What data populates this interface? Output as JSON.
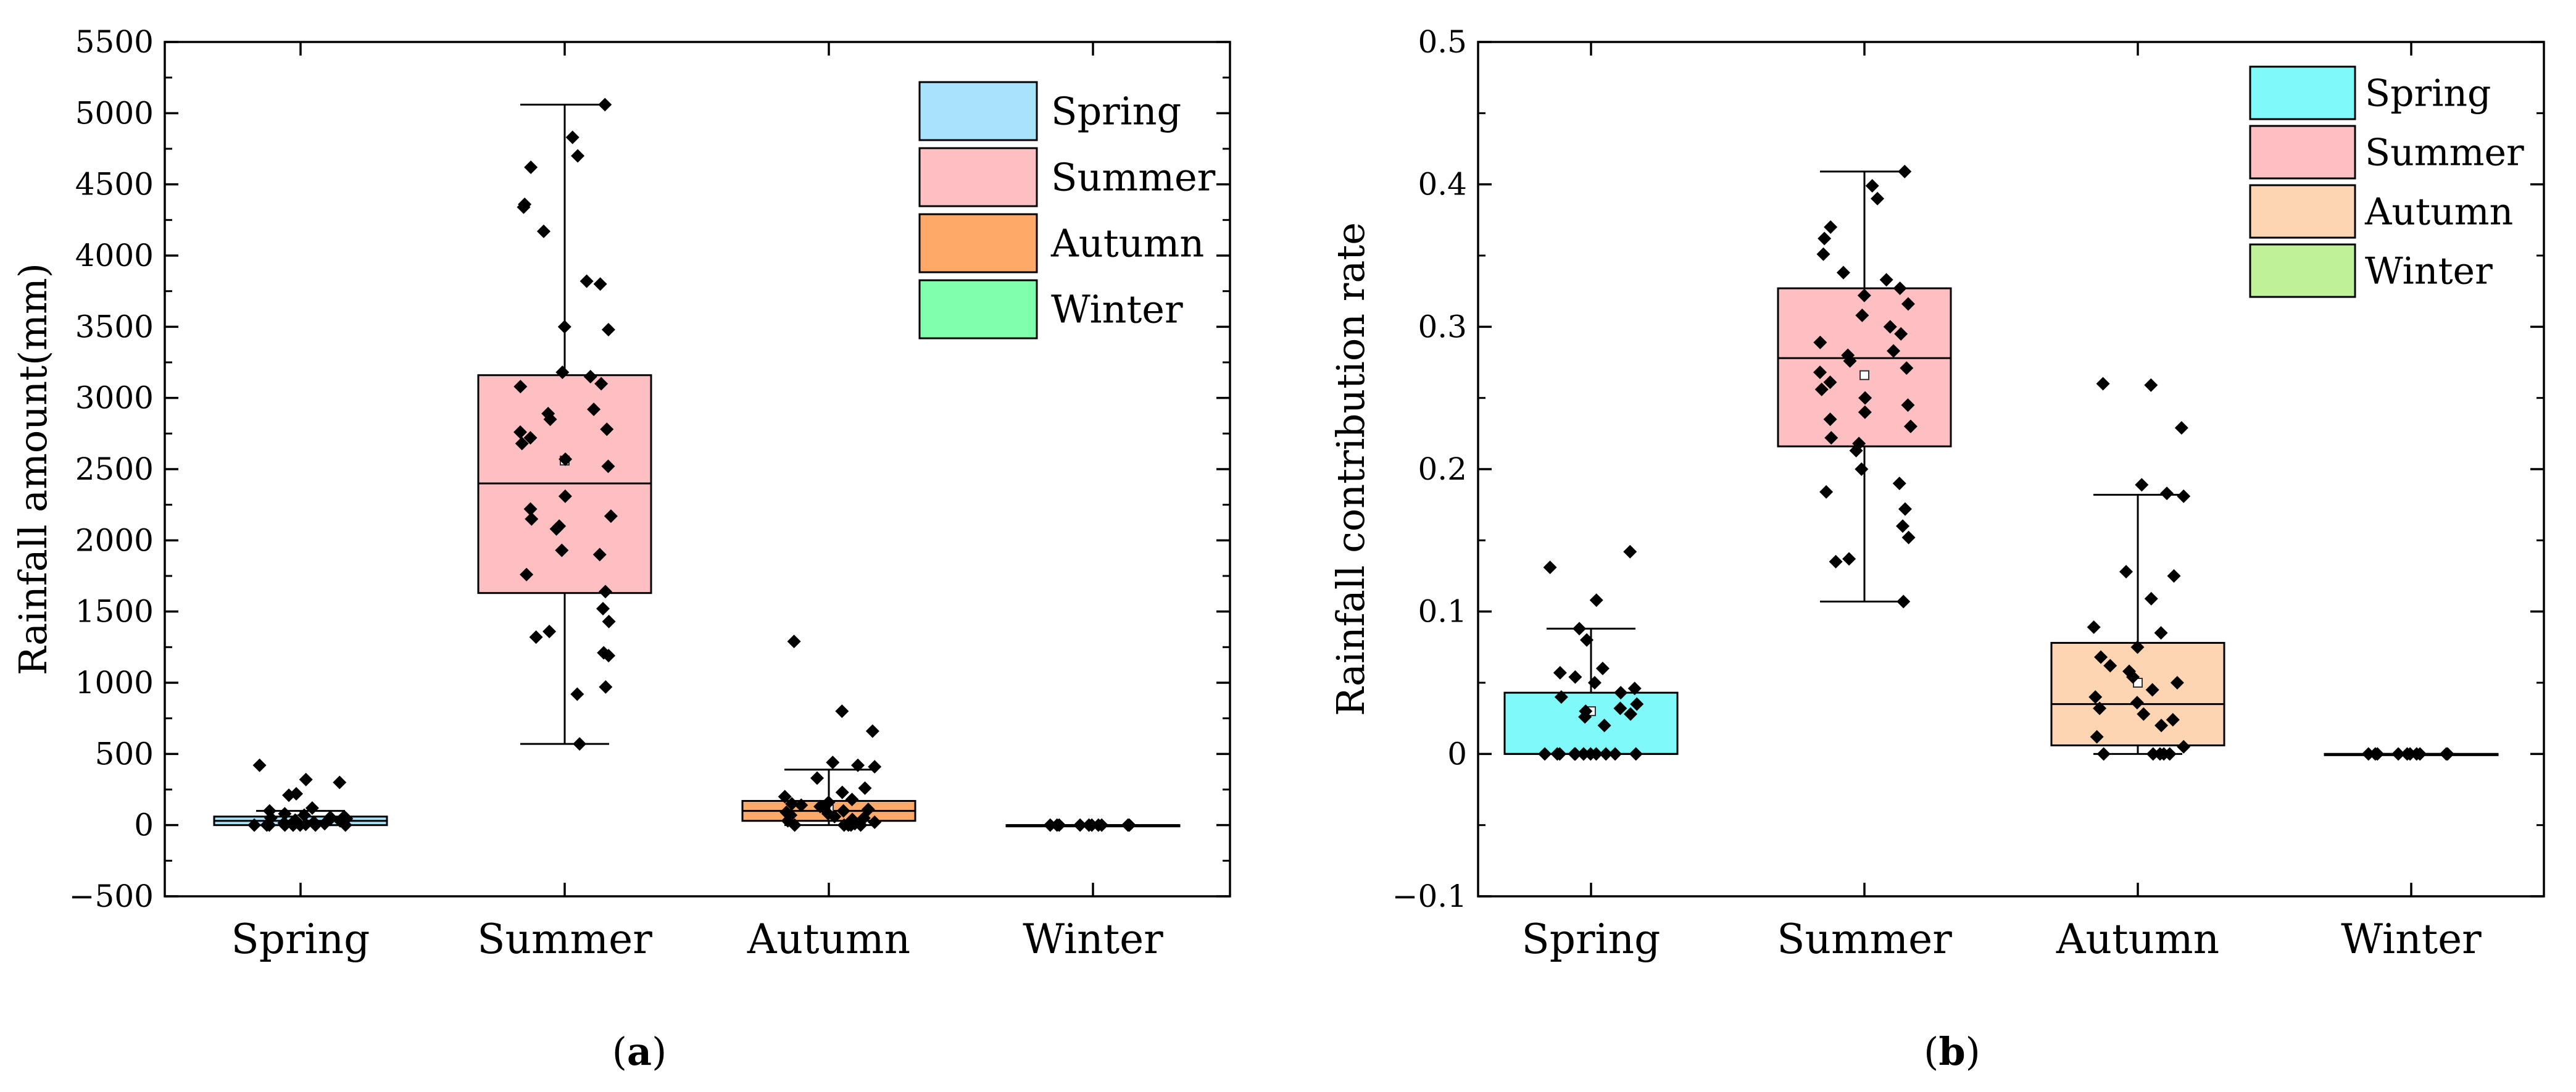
{
  "chart_data": [
    {
      "type": "box",
      "panel_label_open": "(",
      "panel_label": "a",
      "panel_label_close": ")",
      "xlabel": "",
      "ylabel": "Rainfall amount(mm)",
      "ylim": [
        -500,
        5500
      ],
      "yticks": [
        -500,
        0,
        500,
        1000,
        1500,
        2000,
        2500,
        3000,
        3500,
        4000,
        4500,
        5000,
        5500
      ],
      "ytick_labels": [
        "−500",
        "0",
        "500",
        "1000",
        "1500",
        "2000",
        "2500",
        "3000",
        "3500",
        "4000",
        "4500",
        "5000",
        "5500"
      ],
      "categories": [
        "Spring",
        "Summer",
        "Autumn",
        "Winter"
      ],
      "legend": [
        "Spring",
        "Summer",
        "Autumn",
        "Winter"
      ],
      "legend_position": "top-right",
      "colors": [
        "#a7e3fb",
        "#fdbfc2",
        "#ffa968",
        "#80ffad"
      ],
      "boxes": [
        {
          "category": "Spring",
          "whisker_low": 0,
          "q1": 0,
          "median": 30,
          "q3": 60,
          "whisker_high": 100,
          "mean": 40,
          "points": [
            300,
            420,
            320,
            210,
            220,
            120,
            100,
            80,
            70,
            60,
            55,
            50,
            45,
            40,
            35,
            30,
            25,
            20,
            15,
            10,
            5,
            0,
            0,
            0,
            0,
            0,
            0,
            0,
            0,
            0
          ]
        },
        {
          "category": "Summer",
          "whisker_low": 570,
          "q1": 1630,
          "median": 2400,
          "q3": 3160,
          "whisker_high": 5060,
          "mean": 2560,
          "points": [
            5060,
            4830,
            4700,
            4620,
            4360,
            4340,
            4170,
            3820,
            3800,
            3500,
            3480,
            3180,
            3150,
            3100,
            3080,
            2920,
            2890,
            2850,
            2780,
            2760,
            2720,
            2680,
            2570,
            2520,
            2310,
            2220,
            2170,
            2150,
            2100,
            2080,
            1930,
            1900,
            1760,
            1640,
            1520,
            1430,
            1360,
            1320,
            1210,
            1190,
            970,
            920,
            570
          ]
        },
        {
          "category": "Autumn",
          "whisker_low": 0,
          "q1": 30,
          "median": 100,
          "q3": 170,
          "whisker_high": 390,
          "mean": 110,
          "points": [
            1290,
            800,
            660,
            440,
            420,
            410,
            330,
            260,
            230,
            200,
            180,
            160,
            150,
            140,
            130,
            120,
            110,
            100,
            90,
            80,
            70,
            60,
            50,
            40,
            30,
            20,
            10,
            0,
            0,
            0,
            0,
            0
          ]
        },
        {
          "category": "Winter",
          "whisker_low": 0,
          "q1": 0,
          "median": 0,
          "q3": 0,
          "whisker_high": 0,
          "mean": 0,
          "points": [
            0,
            0,
            0,
            0,
            0,
            0,
            0,
            0,
            0,
            0
          ]
        }
      ]
    },
    {
      "type": "box",
      "panel_label_open": "(",
      "panel_label": "b",
      "panel_label_close": ")",
      "xlabel": "",
      "ylabel": "Rainfall contribution rate",
      "ylim": [
        -0.1,
        0.5
      ],
      "yticks": [
        -0.1,
        0,
        0.1,
        0.2,
        0.3,
        0.4,
        0.5
      ],
      "ytick_labels": [
        "−0.1",
        "0",
        "0.1",
        "0.2",
        "0.3",
        "0.4",
        "0.5"
      ],
      "categories": [
        "Spring",
        "Summer",
        "Autumn",
        "Winter"
      ],
      "legend": [
        "Spring",
        "Summer",
        "Autumn",
        "Winter"
      ],
      "legend_position": "top-right",
      "colors": [
        "#80f9fa",
        "#fdbfc2",
        "#fdd5b3",
        "#bef198"
      ],
      "boxes": [
        {
          "category": "Spring",
          "whisker_low": 0,
          "q1": 0,
          "median": 0,
          "q3": 0.043,
          "whisker_high": 0.088,
          "mean": 0.03,
          "points": [
            0.142,
            0.131,
            0.108,
            0.088,
            0.08,
            0.06,
            0.057,
            0.054,
            0.05,
            0.046,
            0.043,
            0.04,
            0.035,
            0.032,
            0.03,
            0.028,
            0.026,
            0.02,
            0,
            0,
            0,
            0,
            0,
            0,
            0,
            0,
            0,
            0,
            0,
            0
          ]
        },
        {
          "category": "Summer",
          "whisker_low": 0.107,
          "q1": 0.216,
          "median": 0.278,
          "q3": 0.327,
          "whisker_high": 0.409,
          "mean": 0.266,
          "points": [
            0.409,
            0.399,
            0.39,
            0.37,
            0.362,
            0.351,
            0.338,
            0.333,
            0.327,
            0.322,
            0.316,
            0.308,
            0.3,
            0.295,
            0.289,
            0.283,
            0.28,
            0.276,
            0.271,
            0.268,
            0.261,
            0.256,
            0.25,
            0.245,
            0.24,
            0.235,
            0.23,
            0.222,
            0.218,
            0.213,
            0.2,
            0.19,
            0.184,
            0.172,
            0.16,
            0.152,
            0.137,
            0.135,
            0.107
          ]
        },
        {
          "category": "Autumn",
          "whisker_low": 0,
          "q1": 0.006,
          "median": 0.035,
          "q3": 0.078,
          "whisker_high": 0.182,
          "mean": 0.05,
          "points": [
            0.26,
            0.259,
            0.229,
            0.189,
            0.183,
            0.181,
            0.128,
            0.125,
            0.109,
            0.089,
            0.085,
            0.075,
            0.068,
            0.062,
            0.058,
            0.054,
            0.05,
            0.045,
            0.04,
            0.036,
            0.032,
            0.028,
            0.024,
            0.02,
            0.012,
            0.005,
            0,
            0,
            0,
            0,
            0
          ]
        },
        {
          "category": "Winter",
          "whisker_low": 0,
          "q1": 0,
          "median": 0,
          "q3": 0,
          "whisker_high": 0,
          "mean": 0,
          "points": [
            0,
            0,
            0,
            0,
            0,
            0,
            0,
            0,
            0,
            0
          ]
        }
      ]
    }
  ]
}
